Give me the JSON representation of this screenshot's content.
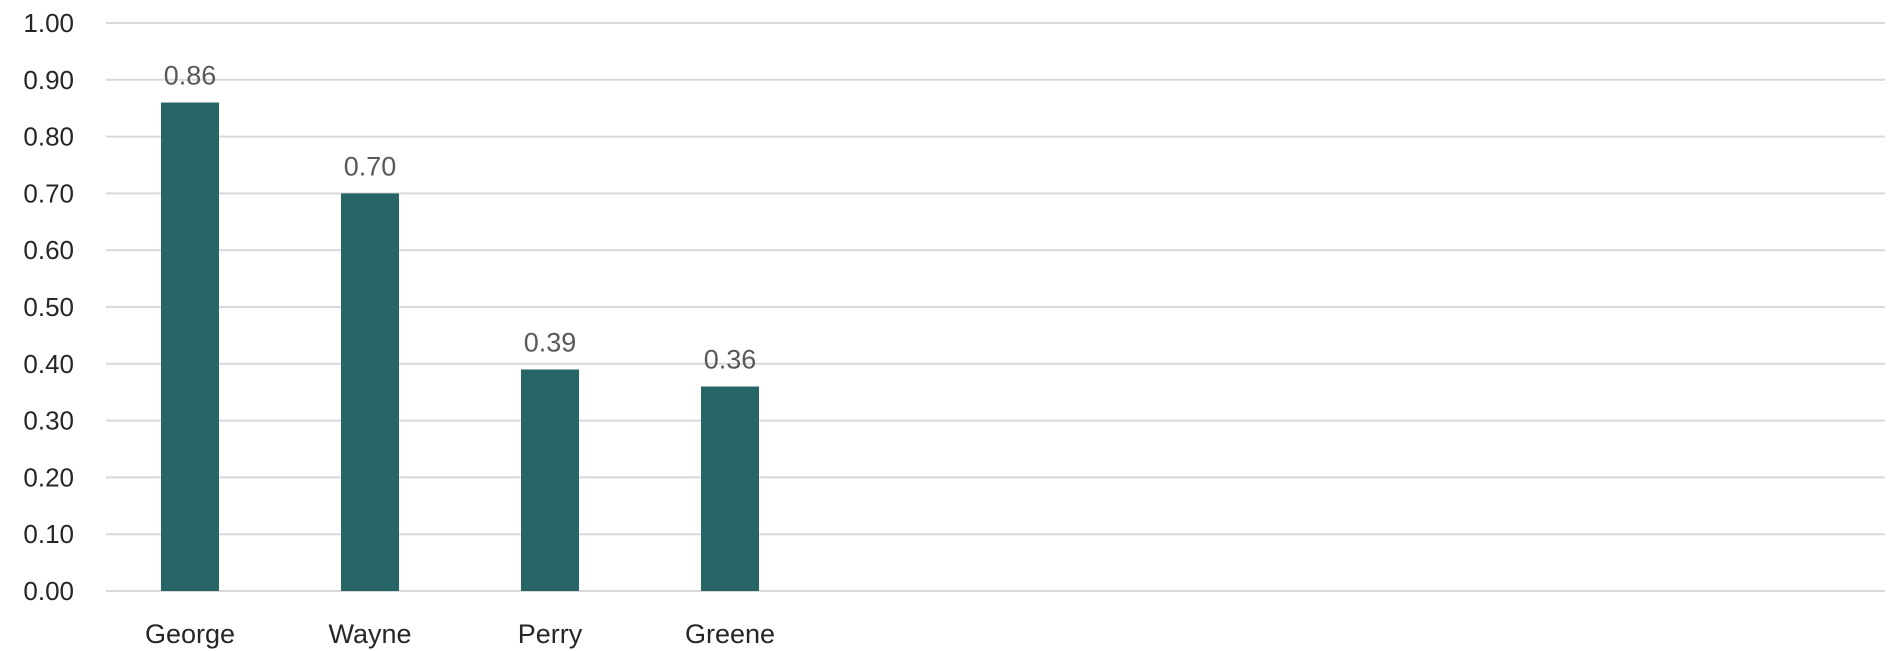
{
  "chart_data": {
    "type": "bar",
    "title": "",
    "xlabel": "",
    "ylabel": "",
    "categories": [
      "George",
      "Wayne",
      "Perry",
      "Greene"
    ],
    "values": [
      0.86,
      0.7,
      0.39,
      0.36
    ],
    "data_labels": [
      "0.86",
      "0.70",
      "0.39",
      "0.36"
    ],
    "ylim": [
      0,
      1.0
    ],
    "yticks": [
      0.0,
      0.1,
      0.2,
      0.3,
      0.4,
      0.5,
      0.6,
      0.7,
      0.8,
      0.9,
      1.0
    ],
    "ytick_labels": [
      "0.00",
      "0.10",
      "0.20",
      "0.30",
      "0.40",
      "0.50",
      "0.60",
      "0.70",
      "0.80",
      "0.90",
      "1.00"
    ],
    "grid": true,
    "legend": "none",
    "colors": {
      "bar": "#276567",
      "grid": "#d9d9d9",
      "tick_text": "#262626",
      "data_label_text": "#595959"
    }
  }
}
